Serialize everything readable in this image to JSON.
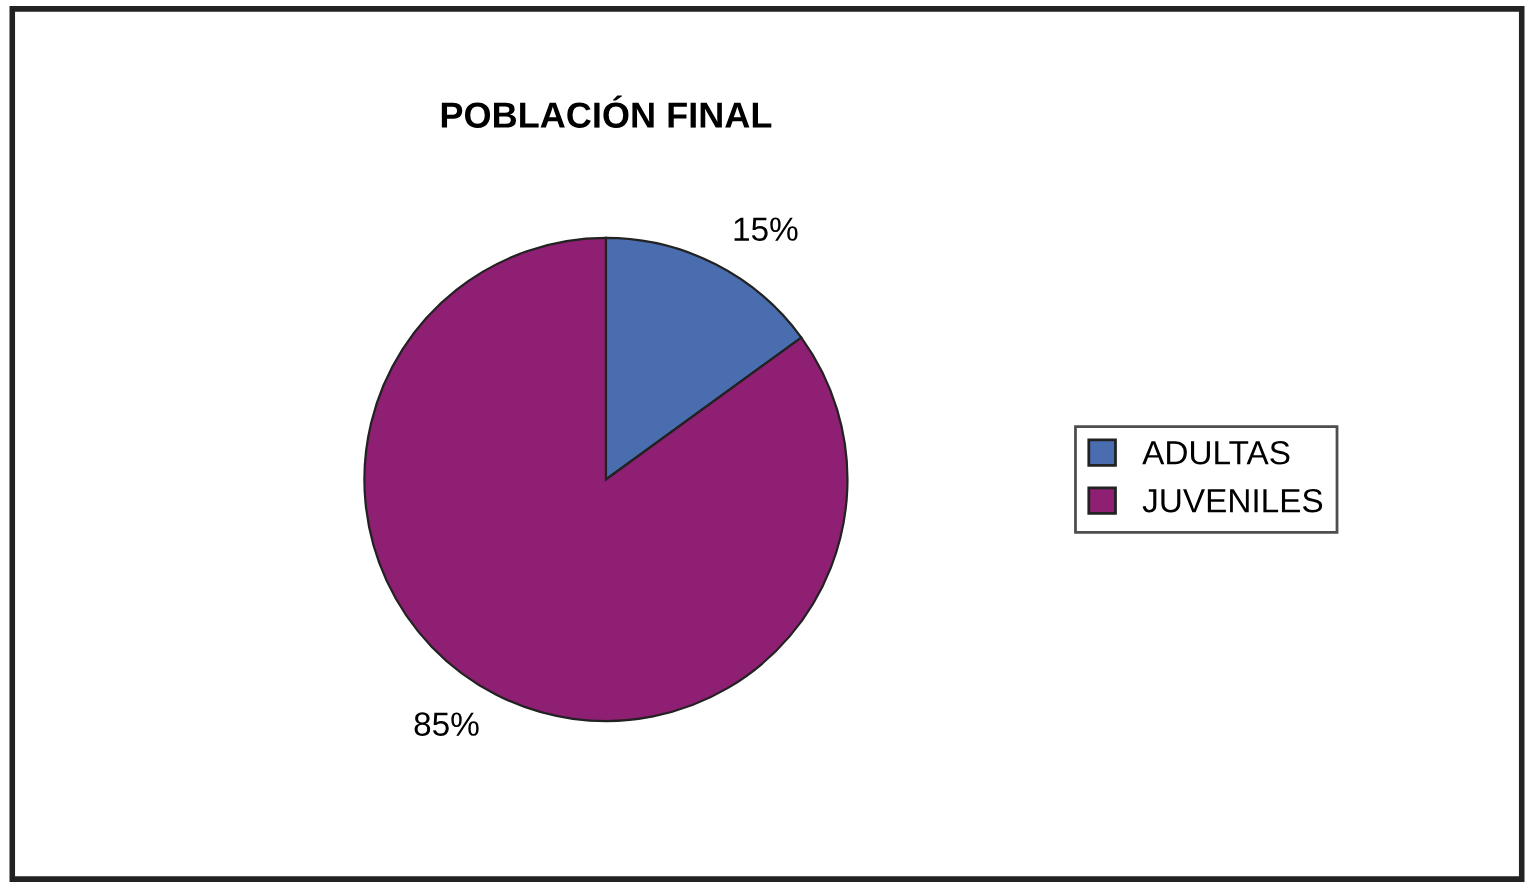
{
  "chart_data": {
    "type": "pie",
    "title": "POBLACIÓN FINAL",
    "categories": [
      "ADULTAS",
      "JUVENILES"
    ],
    "values": [
      15,
      85
    ],
    "value_labels": [
      "15%",
      "85%"
    ],
    "colors": [
      "#4a6db0",
      "#8e1f73"
    ],
    "legend": "right"
  }
}
